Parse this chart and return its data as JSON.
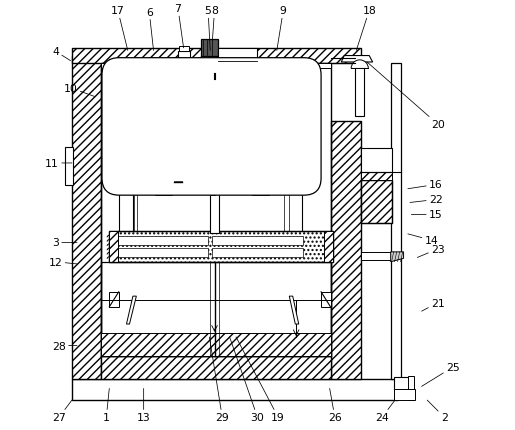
{
  "bg_color": "#ffffff",
  "lc": "#000000",
  "fig_width": 5.15,
  "fig_height": 4.31,
  "labels_data": {
    "1": {
      "t": [
        0.148,
        0.028
      ],
      "a": [
        0.155,
        0.095
      ]
    },
    "2": {
      "t": [
        0.935,
        0.028
      ],
      "a": [
        0.895,
        0.068
      ]
    },
    "3": {
      "t": [
        0.03,
        0.435
      ],
      "a": [
        0.08,
        0.435
      ]
    },
    "4": {
      "t": [
        0.03,
        0.88
      ],
      "a": [
        0.065,
        0.858
      ]
    },
    "5": {
      "t": [
        0.385,
        0.975
      ],
      "a": [
        0.39,
        0.882
      ]
    },
    "6": {
      "t": [
        0.248,
        0.972
      ],
      "a": [
        0.258,
        0.882
      ]
    },
    "7": {
      "t": [
        0.315,
        0.98
      ],
      "a": [
        0.328,
        0.888
      ]
    },
    "8": {
      "t": [
        0.4,
        0.975
      ],
      "a": [
        0.395,
        0.905
      ]
    },
    "9": {
      "t": [
        0.56,
        0.975
      ],
      "a": [
        0.545,
        0.882
      ]
    },
    "10": {
      "t": [
        0.065,
        0.795
      ],
      "a": [
        0.12,
        0.775
      ]
    },
    "11": {
      "t": [
        0.022,
        0.62
      ],
      "a": [
        0.068,
        0.62
      ]
    },
    "12": {
      "t": [
        0.03,
        0.39
      ],
      "a": [
        0.08,
        0.385
      ]
    },
    "13": {
      "t": [
        0.235,
        0.028
      ],
      "a": [
        0.235,
        0.095
      ]
    },
    "14": {
      "t": [
        0.905,
        0.44
      ],
      "a": [
        0.85,
        0.455
      ]
    },
    "15": {
      "t": [
        0.915,
        0.5
      ],
      "a": [
        0.858,
        0.5
      ]
    },
    "16": {
      "t": [
        0.915,
        0.57
      ],
      "a": [
        0.85,
        0.56
      ]
    },
    "17": {
      "t": [
        0.175,
        0.975
      ],
      "a": [
        0.198,
        0.882
      ]
    },
    "18": {
      "t": [
        0.76,
        0.975
      ],
      "a": [
        0.73,
        0.882
      ]
    },
    "19": {
      "t": [
        0.548,
        0.028
      ],
      "a": [
        0.45,
        0.215
      ]
    },
    "20": {
      "t": [
        0.92,
        0.71
      ],
      "a": [
        0.755,
        0.855
      ]
    },
    "21": {
      "t": [
        0.92,
        0.295
      ],
      "a": [
        0.882,
        0.275
      ]
    },
    "22": {
      "t": [
        0.915,
        0.535
      ],
      "a": [
        0.855,
        0.528
      ]
    },
    "23": {
      "t": [
        0.92,
        0.42
      ],
      "a": [
        0.872,
        0.4
      ]
    },
    "24": {
      "t": [
        0.79,
        0.028
      ],
      "a": [
        0.82,
        0.068
      ]
    },
    "25": {
      "t": [
        0.955,
        0.145
      ],
      "a": [
        0.882,
        0.1
      ]
    },
    "26": {
      "t": [
        0.68,
        0.028
      ],
      "a": [
        0.668,
        0.095
      ]
    },
    "27": {
      "t": [
        0.038,
        0.028
      ],
      "a": [
        0.068,
        0.068
      ]
    },
    "28": {
      "t": [
        0.038,
        0.195
      ],
      "a": [
        0.08,
        0.195
      ]
    },
    "29": {
      "t": [
        0.418,
        0.028
      ],
      "a": [
        0.388,
        0.215
      ]
    },
    "30": {
      "t": [
        0.5,
        0.028
      ],
      "a": [
        0.435,
        0.215
      ]
    }
  }
}
